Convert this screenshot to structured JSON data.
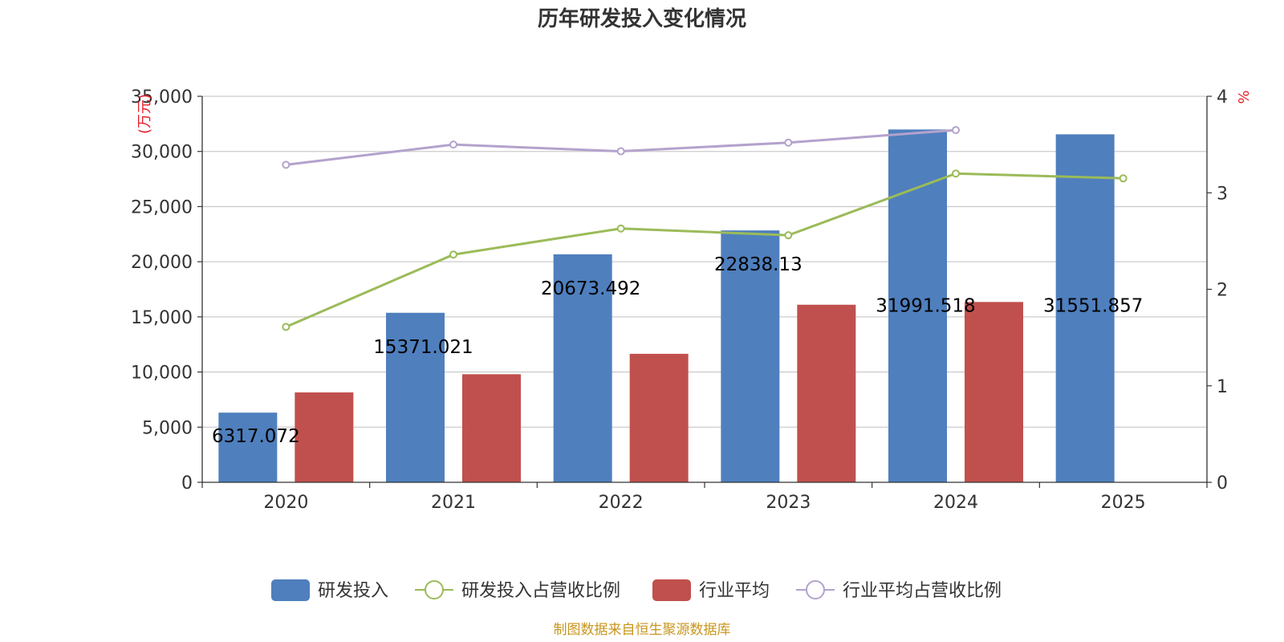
{
  "chart_data": {
    "type": "bar",
    "title": "历年研发投入变化情况",
    "categories": [
      "2020",
      "2021",
      "2022",
      "2023",
      "2024",
      "2025"
    ],
    "left_axis": {
      "unit": "(万元)",
      "min": 0,
      "max": 35000,
      "ticks": [
        "0",
        "5,000",
        "10,000",
        "15,000",
        "20,000",
        "25,000",
        "30,000",
        "35,000"
      ]
    },
    "right_axis": {
      "unit": "%",
      "min": 0,
      "max": 4,
      "ticks": [
        "0",
        "1",
        "2",
        "3",
        "4"
      ]
    },
    "series": [
      {
        "name": "研发投入",
        "kind": "bar",
        "axis": "left",
        "color": "#4f7fbd",
        "values": [
          6317.072,
          15371.021,
          20673.492,
          22838.13,
          31991.518,
          31551.857
        ],
        "labels": [
          "6317.072",
          "15371.021",
          "20673.492",
          "22838.13",
          "31991.518",
          "31551.857"
        ]
      },
      {
        "name": "研发投入占营收比例",
        "kind": "line",
        "axis": "right",
        "color": "#9bbb59",
        "values": [
          1.61,
          2.36,
          2.63,
          2.56,
          3.2,
          3.15
        ]
      },
      {
        "name": "行业平均",
        "kind": "bar",
        "axis": "left",
        "color": "#c0504d",
        "values": [
          8150,
          9800,
          11650,
          16100,
          16350,
          null
        ]
      },
      {
        "name": "行业平均占营收比例",
        "kind": "line",
        "axis": "right",
        "color": "#b3a2cc",
        "values": [
          3.29,
          3.5,
          3.43,
          3.52,
          3.65,
          null
        ]
      }
    ],
    "legend_position": "bottom-center",
    "grid": true
  },
  "source_note": "制图数据来自恒生聚源数据库"
}
